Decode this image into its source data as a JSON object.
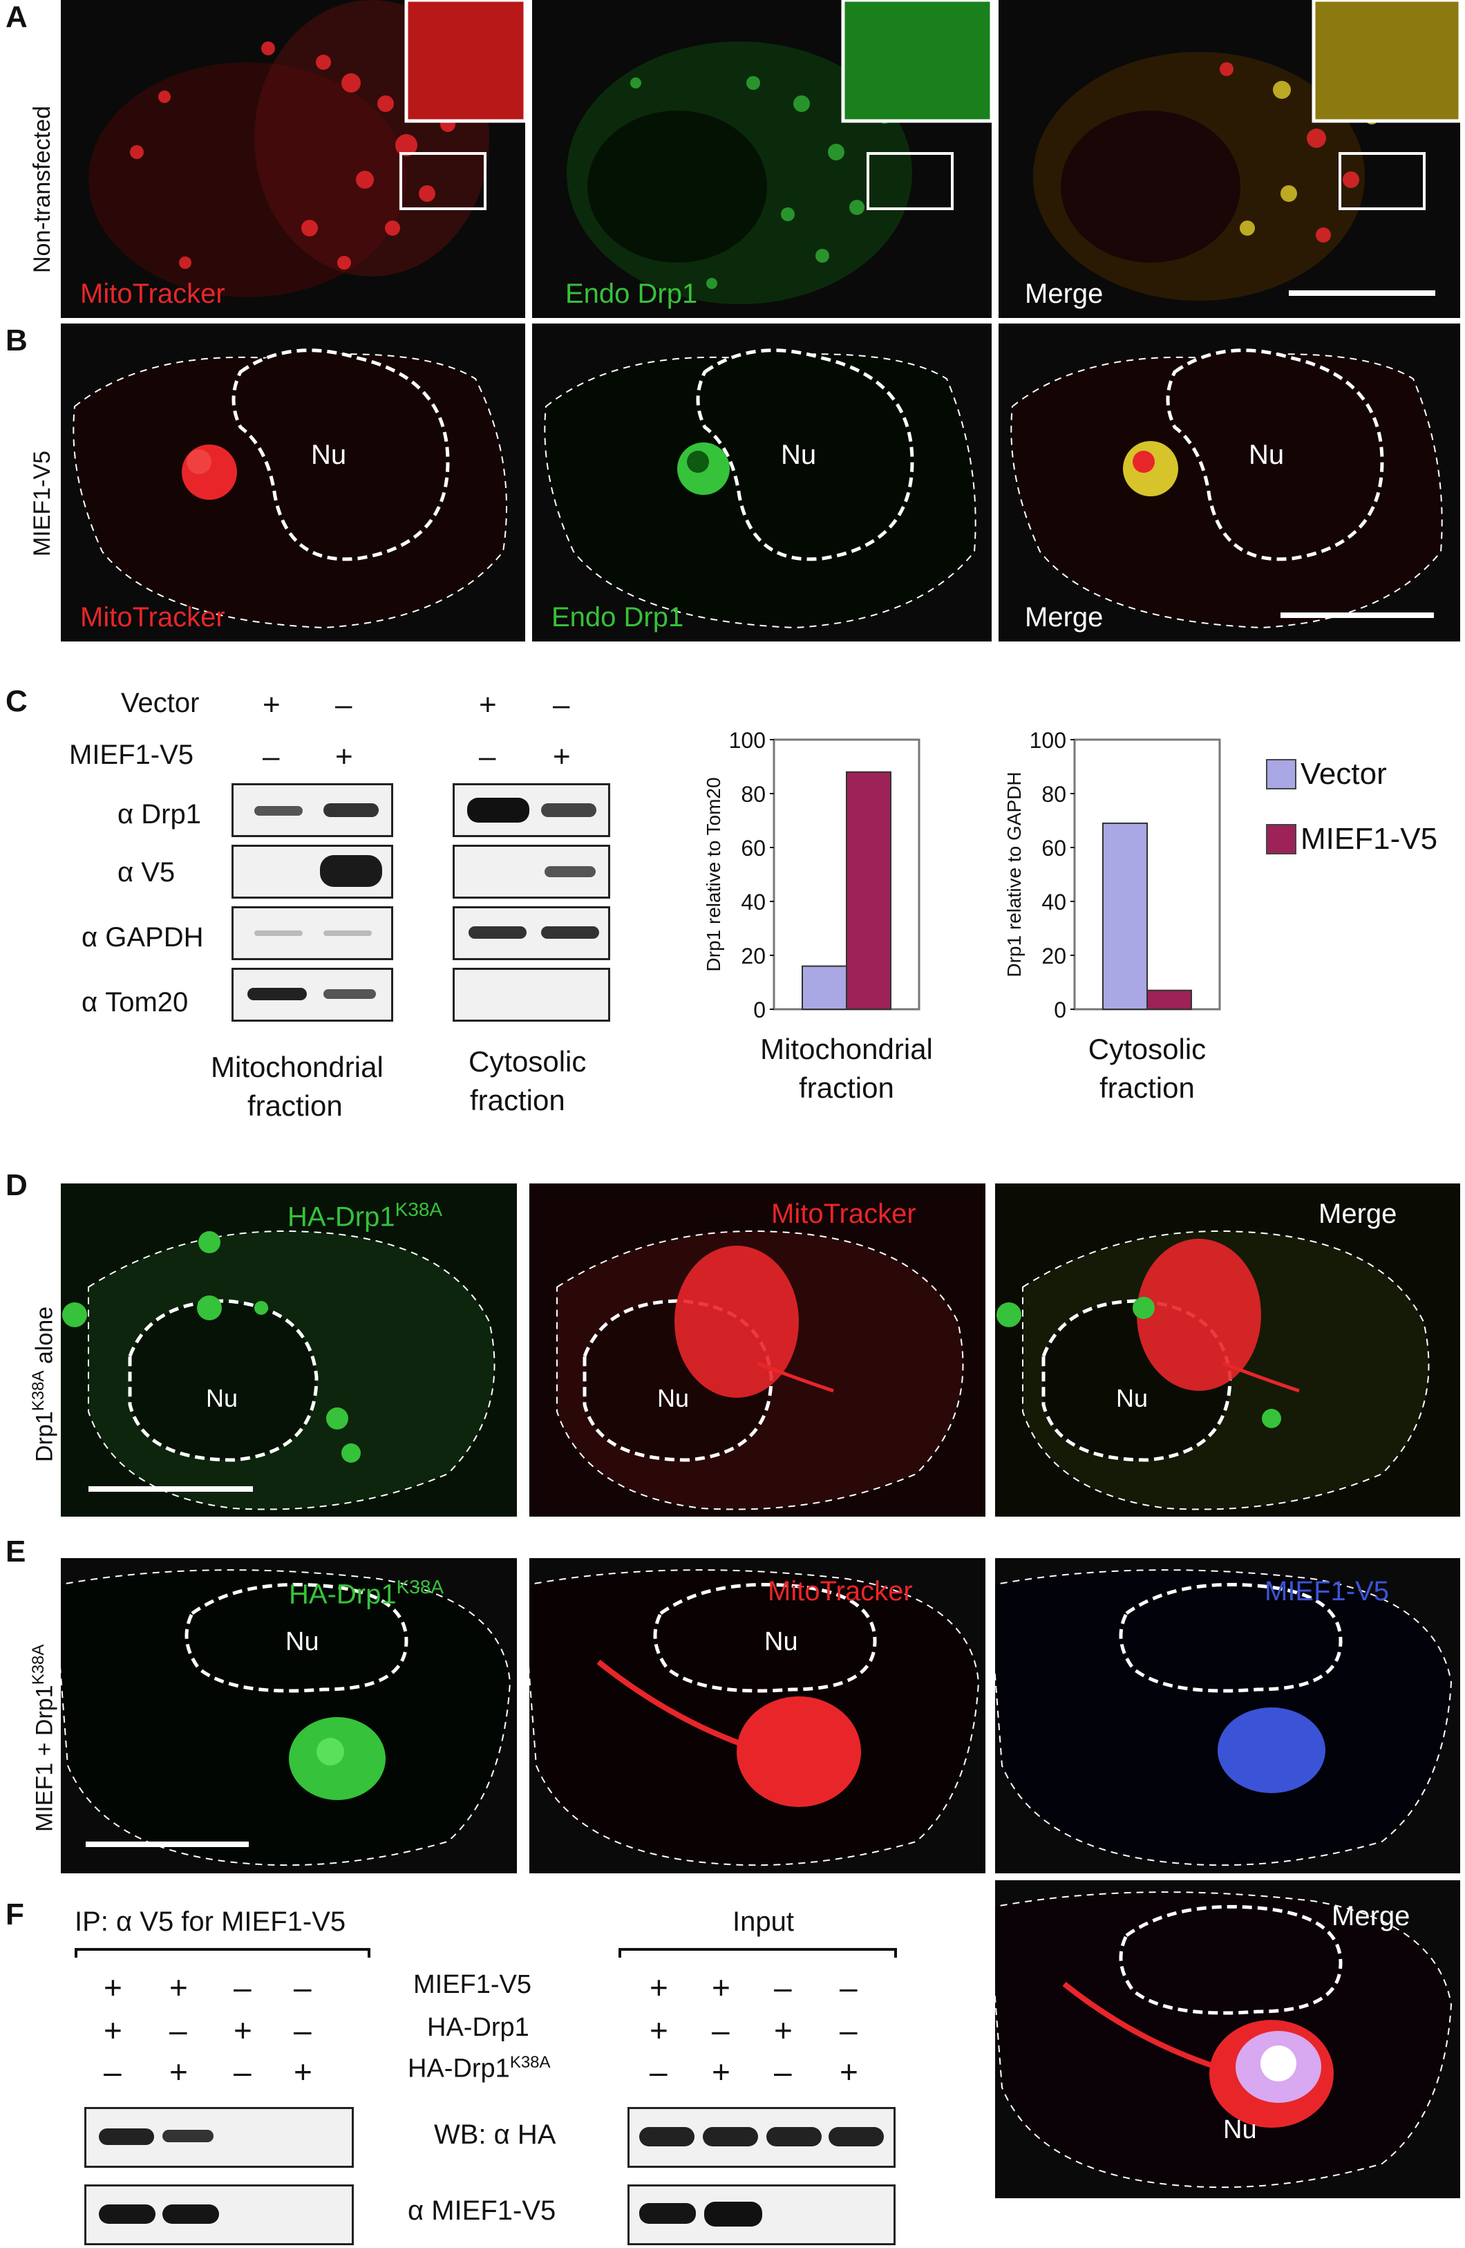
{
  "panels": {
    "A": "A",
    "B": "B",
    "C": "C",
    "D": "D",
    "E": "E",
    "F": "F"
  },
  "rows": {
    "a": "Non-transfected",
    "b": "MIEF1-V5",
    "d": "Drp1K38A alone",
    "e": "MIEF1 + Drp1K38A"
  },
  "micro": {
    "mitotracker": "MitoTracker",
    "endo_drp1": "Endo Drp1",
    "merge": "Merge",
    "nu": "Nu",
    "ha_drp1": "HA-Drp1",
    "k38a": "K38A",
    "mief1_v5": "MIEF1-V5"
  },
  "colors": {
    "red": "#e8262a",
    "green": "#36c23a",
    "blue": "#3b53d6",
    "vector_bar": "#a9a7e4",
    "mief_bar": "#9c2257"
  },
  "panel_c": {
    "vector": "Vector",
    "mief1_v5": "MIEF1-V5",
    "lane_signs": {
      "vector": [
        "+",
        "–",
        "+",
        "–"
      ],
      "mief1": [
        "–",
        "+",
        "–",
        "+"
      ]
    },
    "blot_rows": [
      "α Drp1",
      "α V5",
      "α GAPDH",
      "α Tom20"
    ],
    "mito_fraction_1": "Mitochondrial",
    "mito_fraction_2": "fraction",
    "cyto_fraction_1": "Cytosolic",
    "cyto_fraction_2": "fraction",
    "legend": [
      "Vector",
      "MIEF1-V5"
    ]
  },
  "chart_data": [
    {
      "type": "bar",
      "categories": [
        "Mitochondrial fraction"
      ],
      "series": [
        {
          "name": "Vector",
          "values": [
            16
          ]
        },
        {
          "name": "MIEF1-V5",
          "values": [
            88
          ]
        }
      ],
      "ylabel": "Drp1 relative to Tom20",
      "xlabel": "Mitochondrial fraction",
      "ylim": [
        0,
        100
      ],
      "yticks": [
        0,
        20,
        40,
        60,
        80,
        100
      ]
    },
    {
      "type": "bar",
      "categories": [
        "Cytosolic fraction"
      ],
      "series": [
        {
          "name": "Vector",
          "values": [
            69
          ]
        },
        {
          "name": "MIEF1-V5",
          "values": [
            7
          ]
        }
      ],
      "ylabel": "Drp1 relative to GAPDH",
      "xlabel": "Cytosolic fraction",
      "ylim": [
        0,
        100
      ],
      "yticks": [
        0,
        20,
        40,
        60,
        80,
        100
      ]
    }
  ],
  "panel_f": {
    "ip": "IP: α V5 for MIEF1-V5",
    "input": "Input",
    "rows": [
      "MIEF1-V5",
      "HA-Drp1",
      "HA-Drp1"
    ],
    "k38a": "K38A",
    "signs": [
      [
        "+",
        "+",
        "–",
        "–"
      ],
      [
        "+",
        "–",
        "+",
        "–"
      ],
      [
        "–",
        "+",
        "–",
        "+"
      ]
    ],
    "wb": "WB:  α HA",
    "wb2": "α MIEF1-V5"
  }
}
